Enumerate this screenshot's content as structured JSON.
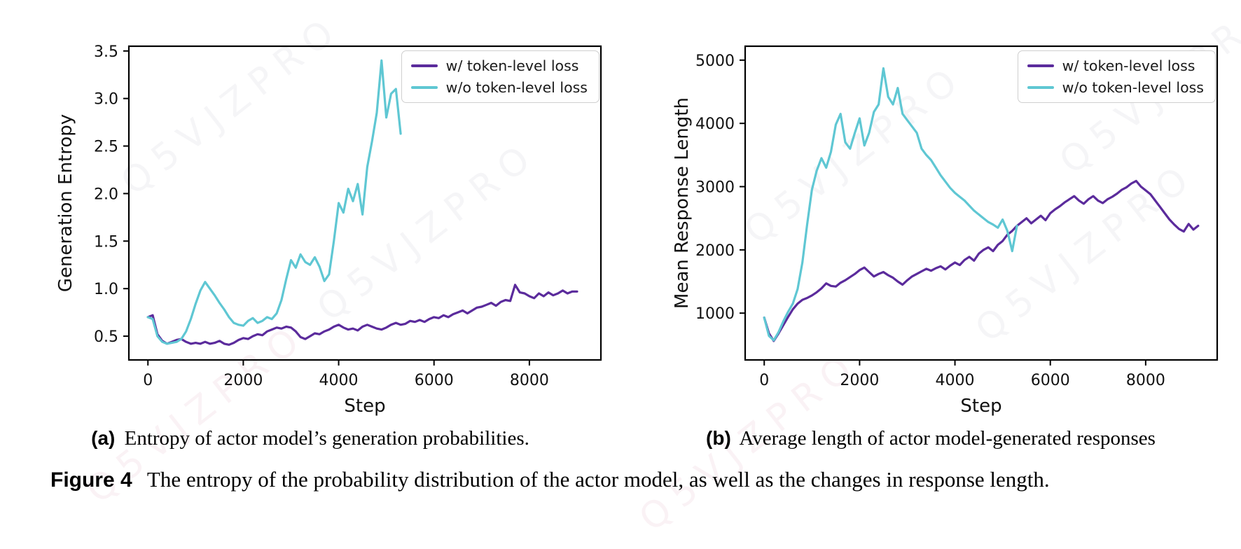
{
  "figure": {
    "caption_label": "Figure 4",
    "caption_text": "The entropy of the probability distribution of the actor model, as well as the changes in response length.",
    "subcaptions": [
      {
        "label": "(a)",
        "text": "Entropy of actor model’s generation probabilities."
      },
      {
        "label": "(b)",
        "text": "Average length of actor model-generated responses"
      }
    ]
  },
  "legend": {
    "with_label": "w/ token-level loss",
    "without_label": "w/o token-level loss"
  },
  "colors": {
    "with_loss_purple": "#5b2b9c",
    "without_loss_cyan": "#5fc7d3",
    "axis_black": "#000000",
    "legend_border": "#cfcfcf"
  },
  "watermark": {
    "text": "Q5VJZPRO"
  },
  "chart_data": [
    {
      "type": "line",
      "title": "",
      "xlabel": "Step",
      "ylabel": "Generation Entropy",
      "xlim": [
        -400,
        9500
      ],
      "ylim": [
        0.25,
        3.55
      ],
      "xticks": [
        0,
        2000,
        4000,
        6000,
        8000
      ],
      "xtick_labels": [
        "0",
        "2000",
        "4000",
        "6000",
        "8000"
      ],
      "yticks": [
        0.5,
        1.0,
        1.5,
        2.0,
        2.5,
        3.0,
        3.5
      ],
      "ytick_labels": [
        "0.5",
        "1.0",
        "1.5",
        "2.0",
        "2.5",
        "3.0",
        "3.5"
      ],
      "grid": false,
      "legend_position": "upper right",
      "series": [
        {
          "name": "w/ token-level loss",
          "color": "#5b2b9c",
          "x_start": 0,
          "x_step": 100,
          "y": [
            0.7,
            0.72,
            0.52,
            0.45,
            0.42,
            0.44,
            0.46,
            0.47,
            0.44,
            0.42,
            0.43,
            0.42,
            0.44,
            0.42,
            0.43,
            0.45,
            0.42,
            0.41,
            0.43,
            0.46,
            0.48,
            0.47,
            0.5,
            0.52,
            0.51,
            0.55,
            0.57,
            0.59,
            0.58,
            0.6,
            0.59,
            0.55,
            0.49,
            0.47,
            0.5,
            0.53,
            0.52,
            0.55,
            0.57,
            0.6,
            0.62,
            0.59,
            0.57,
            0.58,
            0.56,
            0.6,
            0.62,
            0.6,
            0.58,
            0.57,
            0.59,
            0.62,
            0.64,
            0.62,
            0.63,
            0.66,
            0.65,
            0.67,
            0.65,
            0.68,
            0.7,
            0.69,
            0.72,
            0.7,
            0.73,
            0.75,
            0.77,
            0.74,
            0.77,
            0.8,
            0.81,
            0.83,
            0.85,
            0.82,
            0.86,
            0.88,
            0.87,
            1.04,
            0.96,
            0.95,
            0.92,
            0.9,
            0.95,
            0.92,
            0.96,
            0.93,
            0.95,
            0.98,
            0.95,
            0.97,
            0.97
          ]
        },
        {
          "name": "w/o token-level loss",
          "color": "#5fc7d3",
          "x_start": 0,
          "x_step": 100,
          "y": [
            0.7,
            0.68,
            0.5,
            0.44,
            0.42,
            0.43,
            0.44,
            0.47,
            0.55,
            0.68,
            0.84,
            0.98,
            1.07,
            1.0,
            0.93,
            0.85,
            0.78,
            0.7,
            0.64,
            0.62,
            0.61,
            0.66,
            0.69,
            0.64,
            0.66,
            0.7,
            0.68,
            0.74,
            0.88,
            1.1,
            1.3,
            1.22,
            1.36,
            1.28,
            1.25,
            1.33,
            1.23,
            1.08,
            1.15,
            1.5,
            1.9,
            1.8,
            2.05,
            1.92,
            2.1,
            1.78,
            2.28,
            2.55,
            2.85,
            3.4,
            2.8,
            3.05,
            3.1,
            2.63
          ]
        }
      ]
    },
    {
      "type": "line",
      "title": "",
      "xlabel": "Step",
      "ylabel": "Mean Response Length",
      "xlim": [
        -400,
        9500
      ],
      "ylim": [
        260,
        5220
      ],
      "xticks": [
        0,
        2000,
        4000,
        6000,
        8000
      ],
      "xtick_labels": [
        "0",
        "2000",
        "4000",
        "6000",
        "8000"
      ],
      "yticks": [
        1000,
        2000,
        3000,
        4000,
        5000
      ],
      "ytick_labels": [
        "1000",
        "2000",
        "3000",
        "4000",
        "5000"
      ],
      "grid": false,
      "legend_position": "upper right",
      "series": [
        {
          "name": "w/ token-level loss",
          "color": "#5b2b9c",
          "x_start": 0,
          "x_step": 100,
          "y": [
            930,
            680,
            560,
            680,
            810,
            940,
            1060,
            1150,
            1210,
            1240,
            1280,
            1330,
            1390,
            1470,
            1430,
            1420,
            1480,
            1520,
            1570,
            1620,
            1680,
            1720,
            1650,
            1580,
            1620,
            1650,
            1600,
            1560,
            1500,
            1450,
            1520,
            1580,
            1620,
            1660,
            1700,
            1670,
            1710,
            1740,
            1690,
            1750,
            1800,
            1760,
            1840,
            1890,
            1830,
            1940,
            2000,
            2040,
            1980,
            2080,
            2140,
            2240,
            2300,
            2380,
            2440,
            2500,
            2420,
            2480,
            2540,
            2470,
            2580,
            2640,
            2690,
            2750,
            2800,
            2850,
            2780,
            2730,
            2800,
            2850,
            2780,
            2740,
            2800,
            2840,
            2890,
            2950,
            2990,
            3050,
            3090,
            3000,
            2940,
            2880,
            2780,
            2680,
            2580,
            2480,
            2400,
            2330,
            2290,
            2410,
            2320,
            2380
          ]
        },
        {
          "name": "w/o token-level loss",
          "color": "#5fc7d3",
          "x_start": 0,
          "x_step": 100,
          "y": [
            930,
            640,
            570,
            700,
            870,
            1020,
            1150,
            1380,
            1800,
            2400,
            2950,
            3250,
            3450,
            3300,
            3550,
            3980,
            4150,
            3700,
            3600,
            3850,
            4080,
            3650,
            3850,
            4180,
            4300,
            4870,
            4420,
            4300,
            4560,
            4150,
            4050,
            3950,
            3850,
            3600,
            3500,
            3420,
            3300,
            3180,
            3080,
            2980,
            2900,
            2840,
            2780,
            2700,
            2620,
            2560,
            2500,
            2440,
            2400,
            2350,
            2480,
            2300,
            1980,
            2380
          ]
        }
      ]
    }
  ]
}
